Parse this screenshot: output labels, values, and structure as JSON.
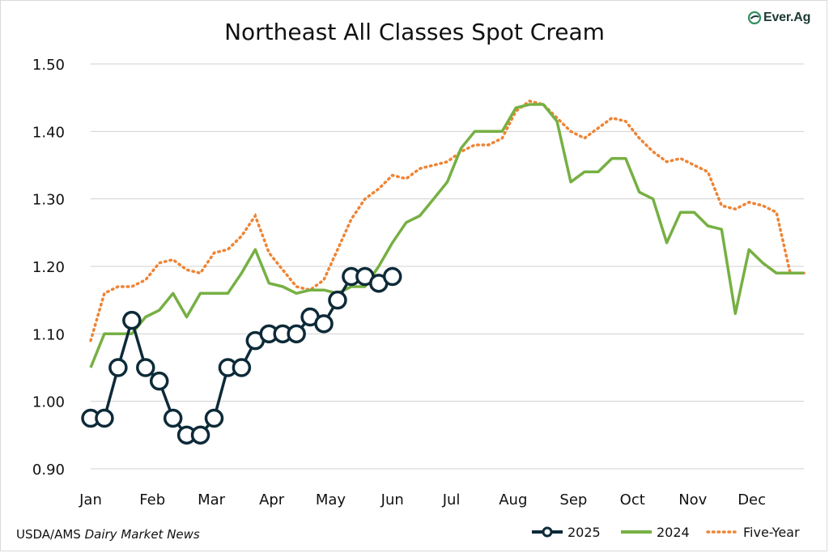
{
  "brand": {
    "logo_text": "Ever.Ag",
    "logo_icon": "ever-ag-swoosh-icon"
  },
  "source": {
    "prefix": "USDA/AMS ",
    "publication": "Dairy Market News"
  },
  "colors": {
    "s2025": "#0d2a38",
    "s2024": "#76b043",
    "five_year": "#ee8434",
    "grid": "#d0d0d0",
    "axis_text": "#111111"
  },
  "chart_data": {
    "type": "line",
    "title": "Northeast All Classes Spot Cream",
    "xlabel": "",
    "ylabel": "",
    "ylim": [
      0.9,
      1.5
    ],
    "y_ticks": [
      "0.90",
      "1.00",
      "1.10",
      "1.20",
      "1.30",
      "1.40",
      "1.50"
    ],
    "x_unit": "week of year",
    "xlim": [
      1,
      53
    ],
    "months": [
      {
        "label": "Jan",
        "week": 1
      },
      {
        "label": "Feb",
        "week": 5.5
      },
      {
        "label": "Mar",
        "week": 9.8
      },
      {
        "label": "Apr",
        "week": 14.2
      },
      {
        "label": "May",
        "week": 18.5
      },
      {
        "label": "Jun",
        "week": 23
      },
      {
        "label": "Jul",
        "week": 27.3
      },
      {
        "label": "Aug",
        "week": 31.8
      },
      {
        "label": "Sep",
        "week": 36.2
      },
      {
        "label": "Oct",
        "week": 40.5
      },
      {
        "label": "Nov",
        "week": 44.9
      },
      {
        "label": "Dec",
        "week": 49.2
      }
    ],
    "grid": true,
    "legend_position": "bottom-right",
    "series": [
      {
        "name": "2025",
        "style": "line-markers",
        "x": [
          1,
          2,
          3,
          4,
          5,
          6,
          7,
          8,
          9,
          10,
          11,
          12,
          13,
          14,
          15,
          16,
          17,
          18,
          19,
          20,
          21,
          22,
          23,
          24
        ],
        "values": [
          0.975,
          0.975,
          1.05,
          1.12,
          1.05,
          1.03,
          0.975,
          0.95,
          0.95,
          0.975,
          1.05,
          1.05,
          1.09,
          1.1,
          1.1,
          1.1,
          1.125,
          1.115,
          1.15,
          1.185,
          1.185,
          1.175,
          1.185,
          null
        ]
      },
      {
        "name": "2024",
        "style": "solid",
        "x": [
          1,
          2,
          3,
          4,
          5,
          6,
          7,
          8,
          9,
          10,
          11,
          12,
          13,
          14,
          15,
          16,
          17,
          18,
          19,
          20,
          21,
          22,
          23,
          24,
          25,
          26,
          27,
          28,
          29,
          30,
          31,
          32,
          33,
          34,
          35,
          36,
          37,
          38,
          39,
          40,
          41,
          42,
          43,
          44,
          45,
          46,
          47,
          48,
          49,
          50,
          51,
          52,
          53
        ],
        "values": [
          1.05,
          1.1,
          1.1,
          1.1,
          1.125,
          1.135,
          1.16,
          1.125,
          1.16,
          1.16,
          1.16,
          1.19,
          1.225,
          1.175,
          1.17,
          1.16,
          1.165,
          1.165,
          1.16,
          1.17,
          1.17,
          1.2,
          1.235,
          1.265,
          1.275,
          1.3,
          1.325,
          1.375,
          1.4,
          1.4,
          1.4,
          1.435,
          1.44,
          1.44,
          1.415,
          1.325,
          1.34,
          1.34,
          1.36,
          1.36,
          1.31,
          1.3,
          1.235,
          1.28,
          1.28,
          1.26,
          1.255,
          1.13,
          1.225,
          1.205,
          1.19,
          1.19,
          1.19
        ]
      },
      {
        "name": "Five-Year",
        "style": "dotted",
        "x": [
          1,
          2,
          3,
          4,
          5,
          6,
          7,
          8,
          9,
          10,
          11,
          12,
          13,
          14,
          15,
          16,
          17,
          18,
          19,
          20,
          21,
          22,
          23,
          24,
          25,
          26,
          27,
          28,
          29,
          30,
          31,
          32,
          33,
          34,
          35,
          36,
          37,
          38,
          39,
          40,
          41,
          42,
          43,
          44,
          45,
          46,
          47,
          48,
          49,
          50,
          51,
          52,
          53
        ],
        "values": [
          1.09,
          1.16,
          1.17,
          1.17,
          1.18,
          1.205,
          1.21,
          1.195,
          1.19,
          1.22,
          1.225,
          1.245,
          1.275,
          1.22,
          1.195,
          1.17,
          1.165,
          1.18,
          1.225,
          1.27,
          1.3,
          1.315,
          1.335,
          1.33,
          1.345,
          1.35,
          1.355,
          1.37,
          1.38,
          1.38,
          1.39,
          1.43,
          1.445,
          1.44,
          1.42,
          1.4,
          1.39,
          1.405,
          1.42,
          1.415,
          1.39,
          1.37,
          1.355,
          1.36,
          1.35,
          1.34,
          1.29,
          1.285,
          1.295,
          1.29,
          1.28,
          1.19,
          1.19
        ]
      }
    ]
  }
}
